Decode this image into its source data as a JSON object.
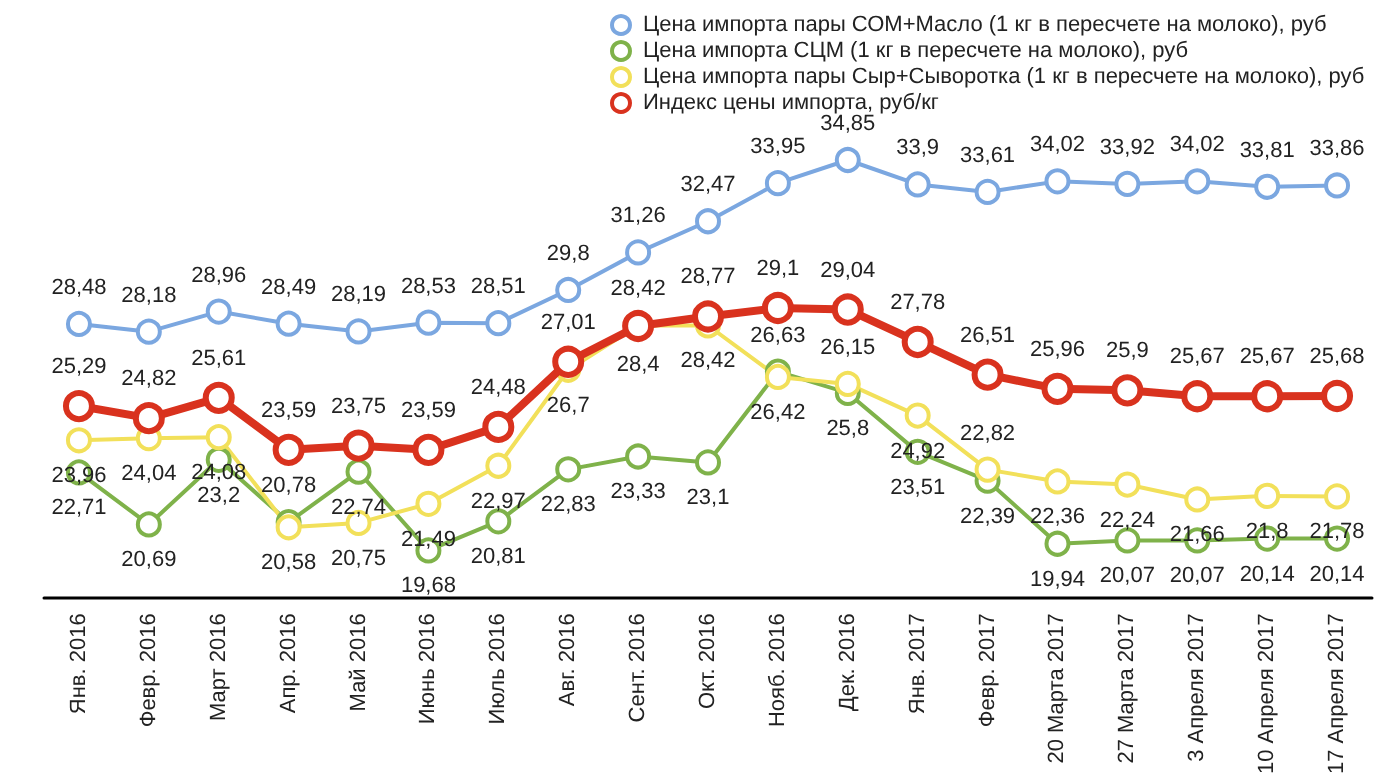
{
  "chart_data": {
    "type": "line",
    "categories": [
      "Янв. 2016",
      "Февр. 2016",
      "Март 2016",
      "Апр. 2016",
      "Май 2016",
      "Июнь 2016",
      "Июль 2016",
      "Авг. 2016",
      "Сент. 2016",
      "Окт. 2016",
      "Нояб. 2016",
      "Дек. 2016",
      "Янв. 2017",
      "Февр. 2017",
      "20 Марта 2017",
      "27 Марта 2017",
      "3 Апреля 2017",
      "10 Апреля 2017",
      "17 Апреля 2017"
    ],
    "series": [
      {
        "name": "Цена импорта пары СОМ+Масло (1 кг в пересчете на молоко), руб",
        "color": "#7ba7e0",
        "values": [
          28.48,
          28.18,
          28.96,
          28.49,
          28.19,
          28.53,
          28.51,
          29.8,
          31.26,
          32.47,
          33.95,
          34.85,
          33.9,
          33.61,
          34.02,
          33.92,
          34.02,
          33.81,
          33.86
        ],
        "value_labels": [
          "28,48",
          "28,18",
          "28,96",
          "28,49",
          "28,19",
          "28,53",
          "28,51",
          "29,8",
          "31,26",
          "32,47",
          "33,95",
          "34,85",
          "33,9",
          "33,61",
          "34,02",
          "33,92",
          "34,02",
          "33,81",
          "33,86"
        ]
      },
      {
        "name": "Цена импорта СЦМ (1 кг в пересчете на молоко), руб",
        "color": "#7fb24a",
        "values": [
          22.71,
          20.69,
          23.2,
          20.78,
          22.74,
          19.68,
          20.81,
          22.83,
          23.33,
          23.1,
          26.63,
          25.8,
          23.51,
          22.39,
          19.94,
          20.07,
          20.07,
          20.14,
          20.14
        ],
        "value_labels": [
          "22,71",
          "20,69",
          "23,2",
          "20,78",
          "22,74",
          "19,68",
          "20,81",
          "22,83",
          "23,33",
          "23,1",
          "26,63",
          "25,8",
          "23,51",
          "22,39",
          "19,94",
          "20,07",
          "20,07",
          "20,14",
          "20,14"
        ]
      },
      {
        "name": "Цена импорта пары Сыр+Сыворотка (1 кг в пересчете на молоко), руб",
        "color": "#f2e05a",
        "values": [
          23.96,
          24.04,
          24.08,
          20.58,
          20.75,
          21.49,
          22.97,
          26.7,
          28.42,
          28.42,
          26.42,
          26.15,
          24.92,
          22.82,
          22.36,
          22.24,
          21.66,
          21.8,
          21.78
        ],
        "value_labels": [
          "23,96",
          "24,04",
          "24,08",
          "20,58",
          "20,75",
          "21,49",
          "22,97",
          "26,7",
          "28,42",
          "28,42",
          "26,42",
          "26,15",
          "24,92",
          "22,82",
          "22,36",
          "22,24",
          "21,66",
          "21,8",
          "21,78"
        ]
      },
      {
        "name": "Индекс цены импорта, руб/кг",
        "color": "#d9321e",
        "values": [
          25.29,
          24.82,
          25.61,
          23.59,
          23.75,
          23.59,
          24.48,
          27.01,
          28.4,
          28.77,
          29.1,
          29.04,
          27.78,
          26.51,
          25.96,
          25.9,
          25.67,
          25.67,
          25.68
        ],
        "value_labels": [
          "25,29",
          "24,82",
          "25,61",
          "23,59",
          "23,75",
          "23,59",
          "24,48",
          "27,01",
          "28,4",
          "28,77",
          "29,1",
          "29,04",
          "27,78",
          "26,51",
          "25,96",
          "25,9",
          "25,67",
          "25,67",
          "25,68"
        ]
      }
    ],
    "tick_labels": "x",
    "legend": "top",
    "marker": "circle",
    "line_style": "solid"
  }
}
